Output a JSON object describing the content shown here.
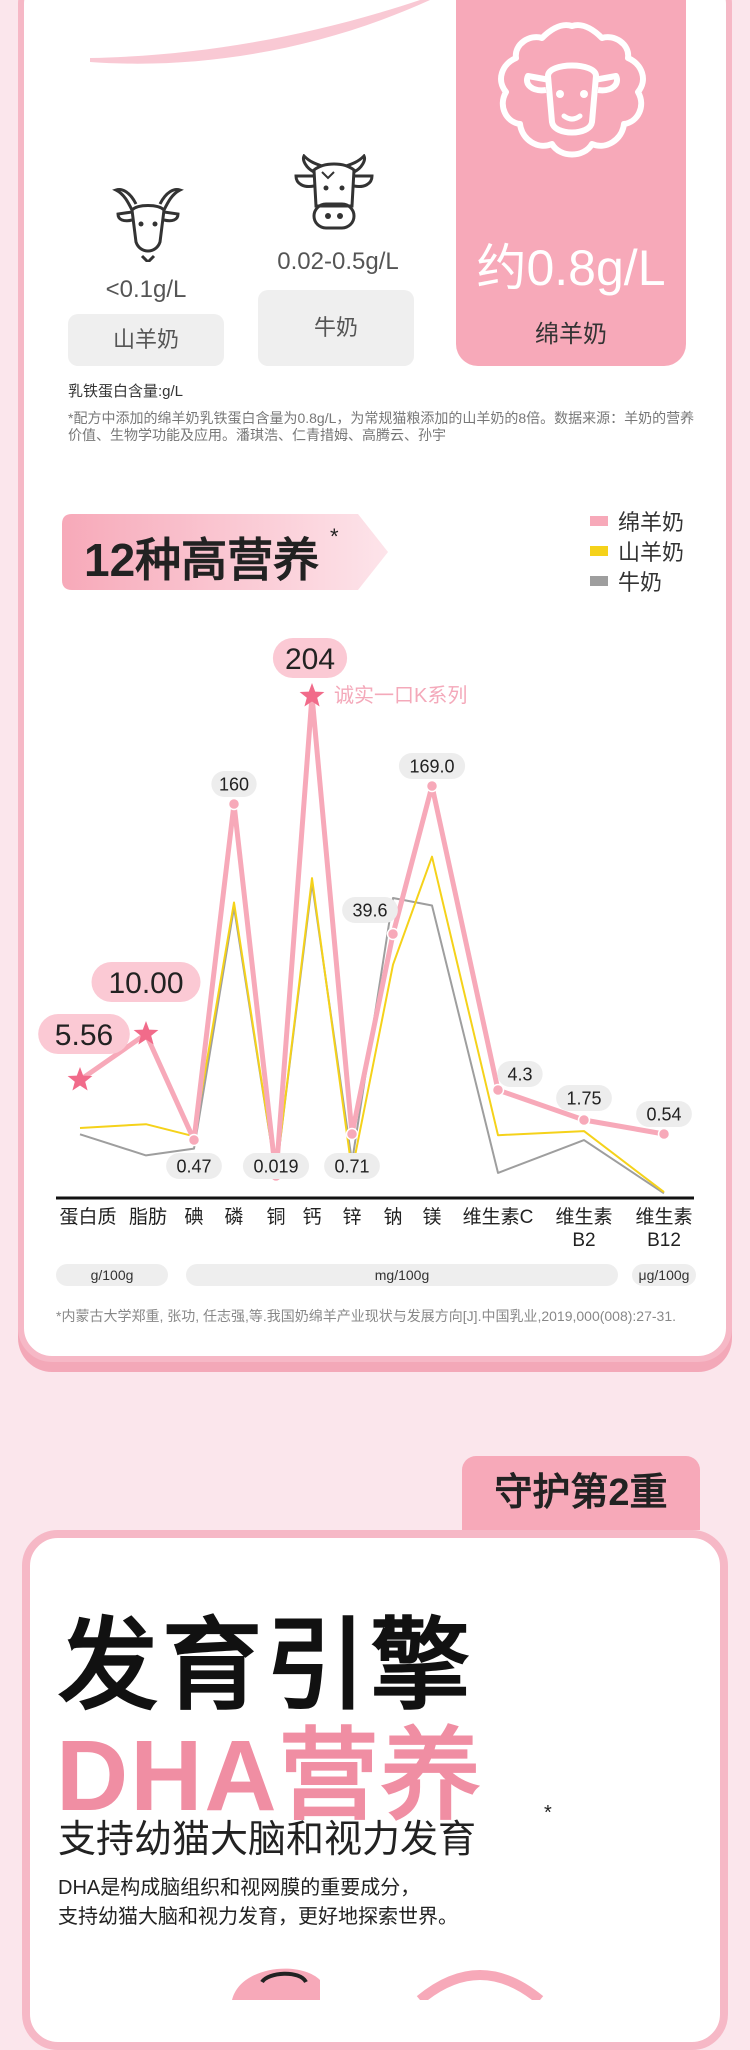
{
  "protein_compare": {
    "items": [
      {
        "value": "<0.1g/L",
        "name": "山羊奶"
      },
      {
        "value": "0.02-0.5g/L",
        "name": "牛奶"
      },
      {
        "value": "约0.8g/L",
        "name": "绵羊奶"
      }
    ],
    "axis_note": "乳铁蛋白含量:g/L",
    "footnote": "*配方中添加的绵羊奶乳铁蛋白含量为0.8g/L，为常规猫粮添加的山羊奶的8倍。数据来源：羊奶的营养价值、生物学功能及应用。潘琪浩、仁青措姆、高腾云、孙宇",
    "icons": {
      "goat": "goat-head-icon",
      "cow": "cow-head-icon",
      "sheep": "sheep-head-icon"
    }
  },
  "nutrition": {
    "title": "12种高营养",
    "title_star": "*",
    "legend": [
      {
        "name": "绵羊奶",
        "color": "#f7a9b9"
      },
      {
        "name": "山羊奶",
        "color": "#f5d21a"
      },
      {
        "name": "牛奶",
        "color": "#9e9e9e"
      }
    ],
    "callout": "诚实一口K系列",
    "units": [
      "g/100g",
      "mg/100g",
      "μg/100g"
    ],
    "reference": "*内蒙古大学郑重, 张功, 任志强,等.我国奶绵羊产业现状与发展方向[J].中国乳业,2019,000(008):27-31."
  },
  "chart_data": {
    "type": "line",
    "categories": [
      "蛋白质",
      "脂肪",
      "碘",
      "磷",
      "铜",
      "钙",
      "锌",
      "钠",
      "镁",
      "维生素C",
      "维生素B2",
      "维生素B12"
    ],
    "data_labels": [
      "5.56",
      "10.00",
      "0.47",
      "160",
      "0.019",
      "204",
      "0.71",
      "39.6",
      "169.0",
      "4.3",
      "1.75",
      "0.54"
    ],
    "series": [
      {
        "name": "绵羊奶",
        "color": "#f7a9b9",
        "values": [
          5.56,
          10.0,
          0.47,
          160,
          0.019,
          204,
          0.71,
          39.6,
          169.0,
          4.3,
          1.75,
          0.54
        ]
      },
      {
        "name": "山羊奶",
        "color": "#f5d21a",
        "values": [
          3.3,
          4.5,
          0.5,
          120,
          0.02,
          130,
          0.3,
          35,
          140,
          2.5,
          1.5,
          0.05
        ]
      },
      {
        "name": "牛奶",
        "color": "#9e9e9e",
        "values": [
          3.0,
          2.6,
          0.4,
          118,
          0.02,
          128,
          0.4,
          45,
          120,
          1.0,
          1.3,
          0.04
        ]
      }
    ],
    "highlighted_categories": [
      "蛋白质",
      "脂肪",
      "钙"
    ]
  },
  "guard": {
    "tab": "守护第2重",
    "heading1": "发育引擎",
    "heading2": "DHA营养",
    "subheading": "支持幼猫大脑和视力发育",
    "sub_star": "*",
    "body_line1": "DHA是构成脑组织和视网膜的重要成分，",
    "body_line2": "支持幼猫大脑和视力发育，更好地探索世界。"
  }
}
